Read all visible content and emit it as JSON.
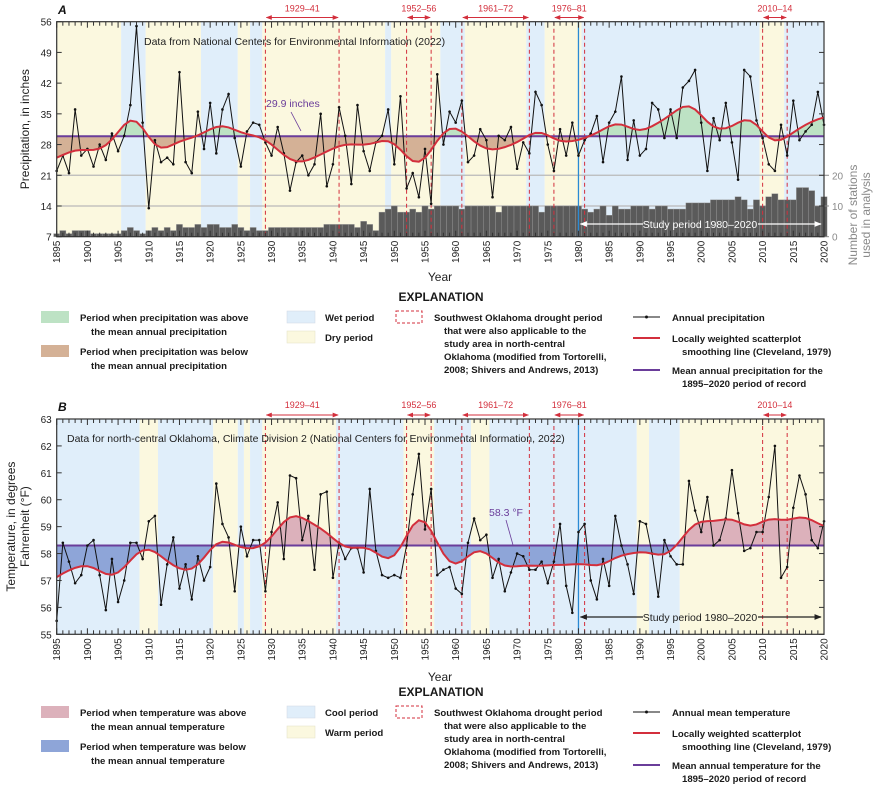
{
  "colors": {
    "dry": "#fbf8df",
    "wet": "#e0eefa",
    "warm": "#fbf8df",
    "cool": "#e0eefa",
    "above_precip": "#bde2c4",
    "below_precip": "#d4b196",
    "above_temp": "#dcb1bb",
    "below_temp": "#8ea5d8",
    "series": "#111111",
    "smooth": "#d32f3c",
    "mean": "#6a3d9a",
    "drought": "#d32f3c",
    "study_line": "#2a8ad4",
    "stations": "#5a5a5a",
    "stations_axis": "#8a8a8a"
  },
  "chart_data": [
    {
      "panel_letter": "A",
      "type": "line",
      "annotation": "Data from National Centers for Environmental Information (2022)",
      "xlabel": "Year",
      "ylabel": [
        "Precipitation, in inches"
      ],
      "xlim": [
        1895,
        2020
      ],
      "xticks": [
        1895,
        1900,
        1905,
        1910,
        1915,
        1920,
        1925,
        1930,
        1935,
        1940,
        1945,
        1950,
        1955,
        1960,
        1965,
        1970,
        1975,
        1980,
        1985,
        1990,
        1995,
        2000,
        2005,
        2010,
        2015,
        2020
      ],
      "ylim": [
        7,
        56
      ],
      "yticks": [
        7,
        14,
        21,
        28,
        35,
        42,
        49,
        56
      ],
      "gridlines": [
        14,
        21
      ],
      "mean": 29.9,
      "mean_label": "29.9 inches",
      "above_color_key": "above_precip",
      "below_color_key": "below_precip",
      "series": [
        {
          "name": "Annual precipitation",
          "values": [
            22,
            25.5,
            21.5,
            36,
            25.5,
            27,
            23,
            28,
            24.5,
            30.5,
            26.5,
            30,
            37,
            55,
            33,
            13.5,
            29,
            24,
            25,
            23.5,
            44.5,
            24,
            21.5,
            35.5,
            27,
            37.5,
            26,
            36,
            39.5,
            29.5,
            23,
            31,
            33,
            32.5,
            28.5,
            25.5,
            32,
            26,
            17.5,
            24,
            25.5,
            21,
            23.5,
            35,
            18.5,
            23.5,
            36.5,
            30,
            19,
            37,
            26.5,
            22,
            28.5,
            30,
            36,
            23.5,
            39,
            18,
            21.5,
            16,
            27,
            14.5,
            44,
            28,
            35.5,
            33,
            38,
            24,
            25.5,
            31.5,
            29,
            16,
            30,
            29,
            32,
            22.5,
            28.5,
            26,
            40,
            37,
            28,
            22,
            31.5,
            25.5,
            33,
            25.5,
            29,
            30.5,
            34.5,
            24,
            33,
            35.5,
            43.5,
            24.5,
            33.5,
            25.5,
            27,
            37.5,
            36,
            29.5,
            36,
            29.5,
            41,
            42.5,
            45,
            33,
            22,
            34,
            29,
            37.5,
            28.5,
            20,
            45,
            43.5,
            33.5,
            29.5,
            23.5,
            22,
            32.5,
            25.5,
            38,
            29,
            31,
            32.5,
            40,
            32.5
          ]
        }
      ],
      "stations": {
        "type": "bar",
        "label": [
          "Number of stations",
          "used in analysis"
        ],
        "ylim": [
          0,
          70
        ],
        "yticks": [
          0,
          10,
          20
        ],
        "values": [
          1,
          2,
          1,
          2,
          2,
          2,
          1,
          1,
          1,
          1,
          1,
          2,
          3,
          2,
          1,
          2,
          3,
          2,
          3,
          2,
          4,
          3,
          3,
          4,
          3,
          4,
          4,
          3,
          3,
          4,
          3,
          2,
          3,
          2,
          2,
          3,
          3,
          3,
          3,
          3,
          3,
          3,
          3,
          3,
          4,
          4,
          4,
          4,
          4,
          3,
          5,
          4,
          2,
          8,
          9,
          10,
          8,
          8,
          9,
          8,
          10,
          9,
          10,
          10,
          10,
          10,
          9,
          10,
          10,
          10,
          10,
          10,
          8,
          10,
          10,
          10,
          10,
          10,
          10,
          8,
          10,
          10,
          10,
          10,
          10,
          10,
          9,
          8,
          9,
          10,
          7,
          10,
          9,
          9,
          10,
          10,
          10,
          9,
          10,
          10,
          9,
          9,
          9,
          11,
          11,
          11,
          11,
          12,
          12,
          12,
          12,
          13,
          12,
          9,
          12,
          10,
          13,
          14,
          12,
          12,
          12,
          16,
          16,
          15,
          10,
          13
        ]
      },
      "periods": [
        {
          "type": "dry",
          "start": 1895,
          "end": 1905.5
        },
        {
          "type": "wet",
          "start": 1905.5,
          "end": 1909.5
        },
        {
          "type": "dry",
          "start": 1909.5,
          "end": 1918.5
        },
        {
          "type": "wet",
          "start": 1918.5,
          "end": 1924.5
        },
        {
          "type": "dry",
          "start": 1924.5,
          "end": 1926.5
        },
        {
          "type": "wet",
          "start": 1926.5,
          "end": 1928.5
        },
        {
          "type": "dry",
          "start": 1928.5,
          "end": 1948.5
        },
        {
          "type": "wet",
          "start": 1948.5,
          "end": 1949.5
        },
        {
          "type": "dry",
          "start": 1949.5,
          "end": 1957.5
        },
        {
          "type": "wet",
          "start": 1957.5,
          "end": 1961.5
        },
        {
          "type": "dry",
          "start": 1961.5,
          "end": 1971.5
        },
        {
          "type": "wet",
          "start": 1971.5,
          "end": 1974.5
        },
        {
          "type": "dry",
          "start": 1974.5,
          "end": 1980.5
        },
        {
          "type": "wet",
          "start": 1980.5,
          "end": 2009.5
        },
        {
          "type": "dry",
          "start": 2009.5,
          "end": 2013.5
        },
        {
          "type": "wet",
          "start": 2013.5,
          "end": 2020
        }
      ],
      "drought_periods": [
        {
          "label": "1929–41",
          "start": 1929,
          "end": 1941
        },
        {
          "label": "1952–56",
          "start": 1952,
          "end": 1956
        },
        {
          "label": "1961–72",
          "start": 1961,
          "end": 1972
        },
        {
          "label": "1976–81",
          "start": 1976,
          "end": 1981
        },
        {
          "label": "2010–14",
          "start": 2010,
          "end": 2014
        }
      ],
      "study_period": {
        "label": "Study period 1980–2020",
        "start": 1980,
        "end": 2020
      },
      "legend": {
        "title": "EXPLANATION",
        "above": [
          "Period when precipitation was above",
          "the mean annual precipitation"
        ],
        "below": [
          "Period when precipitation was below",
          "the mean annual precipitation"
        ],
        "period_1": "Wet period",
        "period_2": "Dry period",
        "period_1_key": "wet",
        "period_2_key": "dry",
        "drought": [
          "Southwest Oklahoma drought period",
          "that were also applicable to the",
          "study area in north-central",
          "Oklahoma (modified from Tortorelli,",
          "2008; Shivers and Andrews, 2013)"
        ],
        "series": [
          "Annual precipitation"
        ],
        "smooth": [
          "Locally weighted scatterplot",
          "smoothing line (Cleveland, 1979)"
        ],
        "mean": [
          "Mean annual precipitation for the",
          "1895–2020 period of record"
        ]
      }
    },
    {
      "panel_letter": "B",
      "type": "line",
      "annotation": "Data for north-central Oklahoma, Climate Division 2 (National Centers for Environmental Information, 2022)",
      "xlabel": "Year",
      "ylabel": [
        "Temperature, in degrees",
        "Fahrenheit (°F)"
      ],
      "xlim": [
        1895,
        2020
      ],
      "xticks": [
        1895,
        1900,
        1905,
        1910,
        1915,
        1920,
        1925,
        1930,
        1935,
        1940,
        1945,
        1950,
        1955,
        1960,
        1965,
        1970,
        1975,
        1980,
        1985,
        1990,
        1995,
        2000,
        2005,
        2010,
        2015,
        2020
      ],
      "ylim": [
        55,
        63
      ],
      "yticks": [
        55,
        56,
        57,
        58,
        59,
        60,
        61,
        62,
        63
      ],
      "gridlines": [],
      "mean": 58.3,
      "mean_label": "58.3 °F",
      "above_color_key": "above_temp",
      "below_color_key": "below_temp",
      "series": [
        {
          "name": "Annual mean temperature",
          "values": [
            55.5,
            58.4,
            57.7,
            56.9,
            57.2,
            58.3,
            58.5,
            57.2,
            55.9,
            57.8,
            56.2,
            57.0,
            58.4,
            58.4,
            57.8,
            59.2,
            59.4,
            56.1,
            57.6,
            58.6,
            56.7,
            57.6,
            56.3,
            57.9,
            57.0,
            57.5,
            60.6,
            59.1,
            58.6,
            56.6,
            59.0,
            57.9,
            58.5,
            58.5,
            56.6,
            58.8,
            59.9,
            57.8,
            60.9,
            60.8,
            58.5,
            59.4,
            57.4,
            60.2,
            60.3,
            57.1,
            58.4,
            57.8,
            58.2,
            58.2,
            57.3,
            60.4,
            58.1,
            57.2,
            57.1,
            57.2,
            57.1,
            58.3,
            60.2,
            61.7,
            58.9,
            60.4,
            57.2,
            57.4,
            57.5,
            56.7,
            56.5,
            58.4,
            59.3,
            58.5,
            58.7,
            57.1,
            57.8,
            56.6,
            57.3,
            58.0,
            57.9,
            57.4,
            57.4,
            57.7,
            56.9,
            57.7,
            59.1,
            56.8,
            55.8,
            58.8,
            59.1,
            57.0,
            56.3,
            57.8,
            56.8,
            59.4,
            58.3,
            57.6,
            56.5,
            59.2,
            59.1,
            58.0,
            56.4,
            58.5,
            57.9,
            57.6,
            57.6,
            60.7,
            59.6,
            58.8,
            60.1,
            58.3,
            58.5,
            59.3,
            61.1,
            59.5,
            58.1,
            58.2,
            58.8,
            58.8,
            60.1,
            62.0,
            57.1,
            57.5,
            59.7,
            60.9,
            60.2,
            58.5,
            58.2,
            59.2
          ]
        }
      ],
      "periods": [
        {
          "type": "cool",
          "start": 1895,
          "end": 1908.5
        },
        {
          "type": "warm",
          "start": 1908.5,
          "end": 1911.5
        },
        {
          "type": "cool",
          "start": 1911.5,
          "end": 1920.5
        },
        {
          "type": "warm",
          "start": 1920.5,
          "end": 1924.5
        },
        {
          "type": "cool",
          "start": 1924.5,
          "end": 1925.5
        },
        {
          "type": "warm",
          "start": 1925.5,
          "end": 1926.5
        },
        {
          "type": "cool",
          "start": 1926.5,
          "end": 1928.5
        },
        {
          "type": "warm",
          "start": 1928.5,
          "end": 1940.5
        },
        {
          "type": "cool",
          "start": 1940.5,
          "end": 1951.5
        },
        {
          "type": "warm",
          "start": 1951.5,
          "end": 1956.5
        },
        {
          "type": "cool",
          "start": 1956.5,
          "end": 1962.5
        },
        {
          "type": "warm",
          "start": 1962.5,
          "end": 1965.5
        },
        {
          "type": "cool",
          "start": 1965.5,
          "end": 1989.5
        },
        {
          "type": "warm",
          "start": 1989.5,
          "end": 1991.5
        },
        {
          "type": "cool",
          "start": 1991.5,
          "end": 1996.5
        },
        {
          "type": "warm",
          "start": 1996.5,
          "end": 2020
        }
      ],
      "drought_periods": [
        {
          "label": "1929–41",
          "start": 1929,
          "end": 1941
        },
        {
          "label": "1952–56",
          "start": 1952,
          "end": 1956
        },
        {
          "label": "1961–72",
          "start": 1961,
          "end": 1972
        },
        {
          "label": "1976–81",
          "start": 1976,
          "end": 1981
        },
        {
          "label": "2010–14",
          "start": 2010,
          "end": 2014
        }
      ],
      "study_period": {
        "label": "Study period 1980–2020",
        "start": 1980,
        "end": 2020
      },
      "legend": {
        "title": "EXPLANATION",
        "above": [
          "Period when temperature was above",
          "the mean annual temperature"
        ],
        "below": [
          "Period when temperature was below",
          "the mean annual temperature"
        ],
        "period_1": "Cool period",
        "period_2": "Warm period",
        "period_1_key": "cool",
        "period_2_key": "warm",
        "drought": [
          "Southwest Oklahoma drought period",
          "that were also applicable to the",
          "study area in north-central",
          "Oklahoma (modified from Tortorelli,",
          "2008; Shivers and Andrews, 2013)"
        ],
        "series": [
          "Annual mean temperature"
        ],
        "smooth": [
          "Locally weighted scatterplot",
          "smoothing line (Cleveland, 1979)"
        ],
        "mean": [
          "Mean annual temperature for the",
          "1895–2020 period of record"
        ]
      }
    }
  ]
}
